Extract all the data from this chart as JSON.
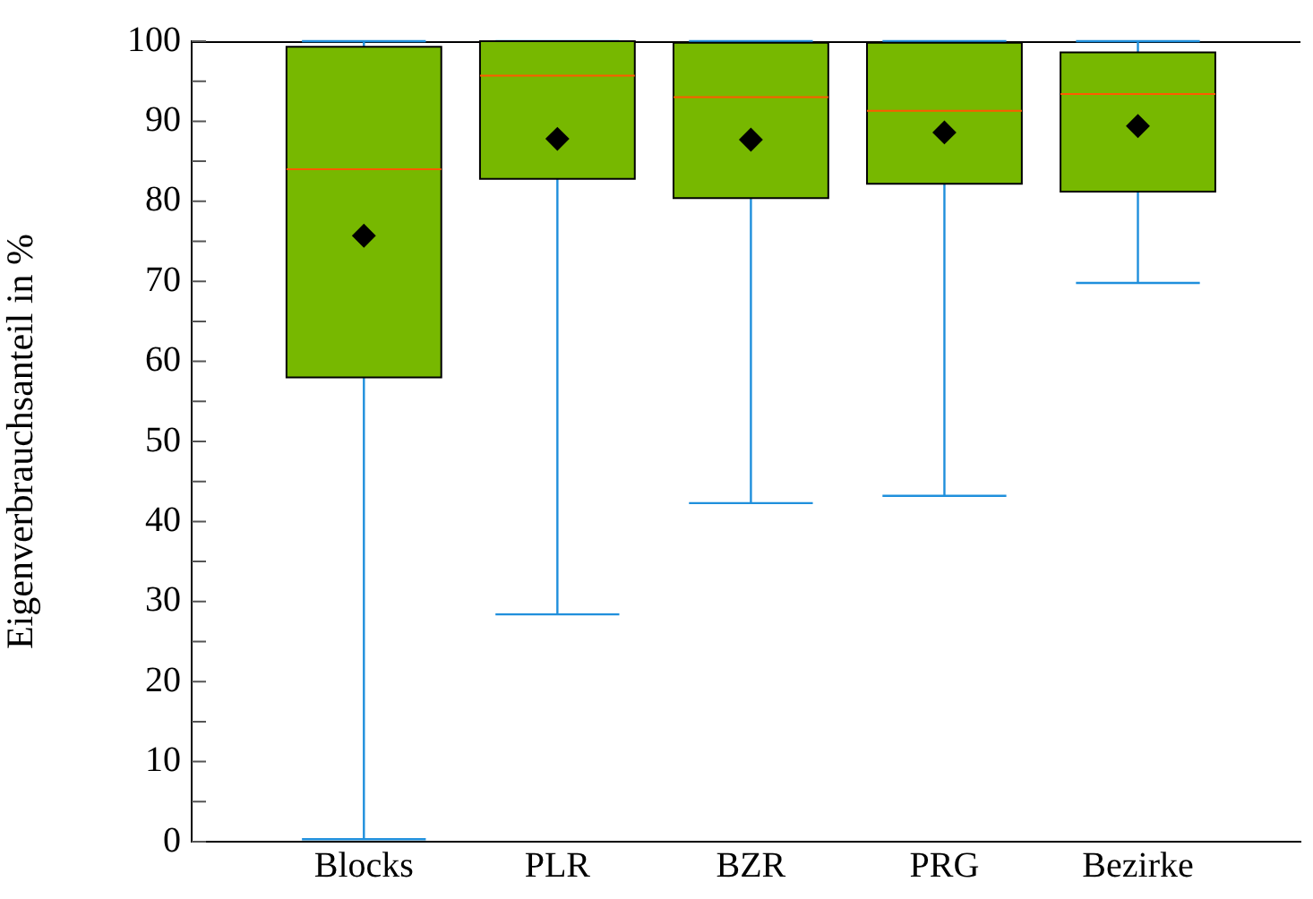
{
  "chart_data": {
    "type": "box",
    "categories": [
      "Blocks",
      "PLR",
      "BZR",
      "PRG",
      "Bezirke"
    ],
    "ylabel": "Eigenverbrauchsanteil in %",
    "ylim": [
      0,
      100
    ],
    "yticks": [
      0,
      {
        "value": 5,
        "label": null
      },
      10,
      {
        "value": 15,
        "label": null
      },
      20,
      {
        "value": 25,
        "label": null
      },
      30,
      {
        "value": 35,
        "label": null
      },
      40,
      {
        "value": 45,
        "label": null
      },
      50,
      {
        "value": 55,
        "label": null
      },
      60,
      {
        "value": 65,
        "label": null
      },
      70,
      {
        "value": 75,
        "label": null
      },
      80,
      {
        "value": 85,
        "label": null
      },
      90,
      {
        "value": 95,
        "label": null
      },
      100
    ],
    "color": "#77b800",
    "marker": "diamond",
    "grid": false,
    "legend": false,
    "boxes": [
      {
        "low": 0.3,
        "q1": 58,
        "median": 84,
        "q3": 99.3,
        "high": 100,
        "mean": 75.7
      },
      {
        "low": 28.4,
        "q1": 82.8,
        "median": 95.7,
        "q3": 100,
        "high": 100,
        "mean": 87.8
      },
      {
        "low": 42.3,
        "q1": 80.4,
        "median": 93,
        "q3": 99.8,
        "high": 100,
        "mean": 87.7
      },
      {
        "low": 43.2,
        "q1": 82.2,
        "median": 91.3,
        "q3": 99.8,
        "high": 100,
        "mean": 88.6
      },
      {
        "low": 69.8,
        "q1": 81.2,
        "median": 93.4,
        "q3": 98.6,
        "high": 100,
        "mean": 89.4
      }
    ]
  }
}
